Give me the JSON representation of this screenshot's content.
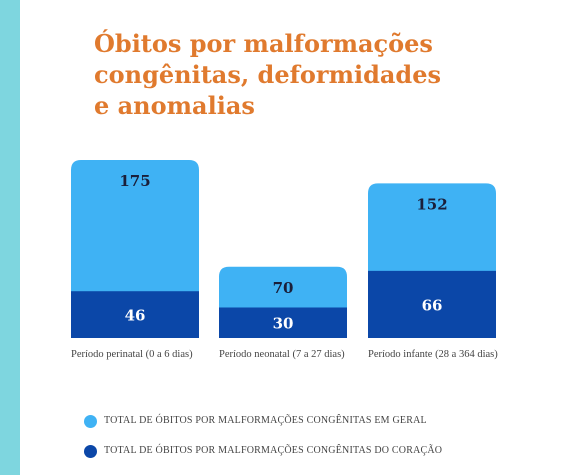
{
  "title_lines": [
    "Óbitos por malformações",
    "congênitas, deformidades",
    "e anomalias"
  ],
  "colors": {
    "accent_band": "#7ed6df",
    "title": "#e07a2e",
    "geral": "#3fb2f4",
    "coracao": "#0b47a8",
    "value_dark": "#1a1f3a",
    "value_light": "#ffffff"
  },
  "chart_data": {
    "type": "bar",
    "stacking": "overlay",
    "categories": [
      "Período perinatal (0 a 6 dias)",
      "Período neonatal (7 a 27 dias)",
      "Período infante (28 a 364 dias)"
    ],
    "series": [
      {
        "name": "TOTAL DE ÓBITOS POR MALFORMAÇÕES CONGÊNITAS EM GERAL",
        "values": [
          175,
          70,
          152
        ]
      },
      {
        "name": "TOTAL DE ÓBITOS POR MALFORMAÇÕES CONGÊNITAS DO CORAÇÃO",
        "values": [
          46,
          30,
          66
        ]
      }
    ],
    "ylim": [
      0,
      175
    ],
    "grid": false,
    "legend_position": "bottom"
  }
}
